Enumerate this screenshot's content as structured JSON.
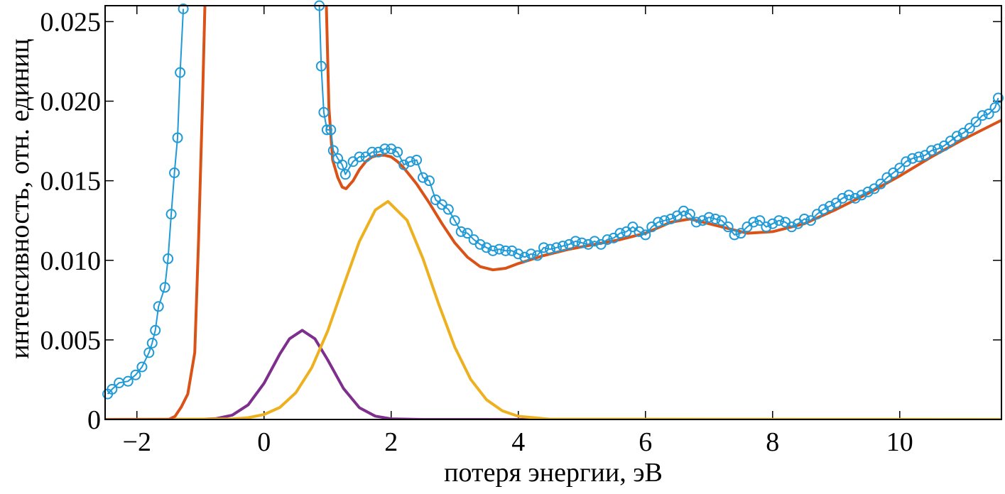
{
  "chart_data": {
    "type": "line",
    "xlabel": "потеря энергии, эВ",
    "ylabel": "интенсивность, отн. единиц",
    "xlim": [
      -2.5,
      11.6
    ],
    "ylim": [
      0,
      0.026
    ],
    "xticks": [
      {
        "value": -2,
        "label": "−2"
      },
      0,
      2,
      4,
      6,
      8,
      10
    ],
    "yticks": [
      0,
      0.005,
      {
        "value": 0.01,
        "label": "0.010"
      },
      0.015,
      {
        "value": 0.02,
        "label": "0.020"
      },
      0.025
    ],
    "series": [
      {
        "color": "#1f9ad6",
        "markers": true,
        "x": [
          -2.46,
          -2.39,
          -2.28,
          -2.14,
          -2.02,
          -1.92,
          -1.81,
          -1.76,
          -1.71,
          -1.66,
          -1.56,
          -1.51,
          -1.46,
          -1.41,
          -1.36,
          -1.32,
          -1.27,
          -0.2,
          0.87,
          0.9,
          0.94,
          0.99,
          1.05,
          1.09,
          1.16,
          1.23,
          1.28,
          1.4,
          1.5,
          1.6,
          1.7,
          1.8,
          1.9,
          2.0,
          2.1,
          2.2,
          2.3,
          2.4,
          2.5,
          2.6,
          2.7,
          2.8,
          2.9,
          3.0,
          3.1,
          3.2,
          3.3,
          3.4,
          3.5,
          3.6,
          3.7,
          3.8,
          3.9,
          4.0,
          4.1,
          4.2,
          4.3,
          4.4,
          4.5,
          4.6,
          4.7,
          4.8,
          4.9,
          5.0,
          5.1,
          5.2,
          5.3,
          5.4,
          5.5,
          5.6,
          5.7,
          5.8,
          5.9,
          6.0,
          6.1,
          6.2,
          6.3,
          6.4,
          6.5,
          6.6,
          6.7,
          6.8,
          6.9,
          7.0,
          7.1,
          7.2,
          7.3,
          7.4,
          7.5,
          7.6,
          7.7,
          7.8,
          7.9,
          8.0,
          8.1,
          8.2,
          8.3,
          8.4,
          8.5,
          8.6,
          8.7,
          8.8,
          8.9,
          9.0,
          9.1,
          9.2,
          9.3,
          9.4,
          9.5,
          9.6,
          9.7,
          9.8,
          9.9,
          10.0,
          10.1,
          10.2,
          10.3,
          10.4,
          10.5,
          10.6,
          10.7,
          10.8,
          10.9,
          11.0,
          11.1,
          11.2,
          11.3,
          11.4,
          11.5,
          11.55
        ],
        "values": [
          0.0016,
          0.0019,
          0.0023,
          0.0024,
          0.0028,
          0.0033,
          0.0042,
          0.0048,
          0.0056,
          0.0071,
          0.0083,
          0.0101,
          0.0129,
          0.0155,
          0.0177,
          0.0218,
          0.0258,
          null,
          0.026,
          0.0222,
          0.0193,
          0.0182,
          0.0182,
          0.0169,
          0.0164,
          0.016,
          0.0154,
          0.0162,
          0.0165,
          0.0165,
          0.0168,
          0.0168,
          0.017,
          0.017,
          0.0168,
          0.016,
          0.0162,
          0.0163,
          0.0152,
          0.015,
          0.0138,
          0.0135,
          0.0132,
          0.0125,
          0.0118,
          0.0117,
          0.0113,
          0.011,
          0.0108,
          0.0106,
          0.0107,
          0.0106,
          0.0106,
          0.0104,
          0.0102,
          0.0104,
          0.0103,
          0.0108,
          0.0107,
          0.0108,
          0.0109,
          0.011,
          0.0112,
          0.0111,
          0.011,
          0.0112,
          0.011,
          0.0113,
          0.0114,
          0.0117,
          0.0118,
          0.0121,
          0.0118,
          0.0116,
          0.0121,
          0.0124,
          0.0125,
          0.0126,
          0.0128,
          0.0131,
          0.0129,
          0.0124,
          0.0125,
          0.0127,
          0.0126,
          0.0125,
          0.0121,
          0.0116,
          0.0117,
          0.0121,
          0.0124,
          0.0125,
          0.0121,
          0.0123,
          0.0125,
          0.0124,
          0.0121,
          0.0123,
          0.0126,
          0.0125,
          0.0129,
          0.0132,
          0.0134,
          0.0136,
          0.0139,
          0.0141,
          0.0139,
          0.0141,
          0.0143,
          0.0145,
          0.0148,
          0.0152,
          0.0155,
          0.0158,
          0.0162,
          0.0164,
          0.0165,
          0.0166,
          0.0169,
          0.017,
          0.0172,
          0.0175,
          0.0178,
          0.018,
          0.0183,
          0.0187,
          0.0191,
          0.0192,
          0.0196,
          0.0202
        ]
      },
      {
        "color": "#d95319",
        "x": [
          -2.5,
          -1.5,
          -1.4,
          -1.3,
          -1.2,
          -1.09,
          -1.03,
          -0.97,
          -0.93,
          0.2,
          0.98,
          1.02,
          1.08,
          1.16,
          1.23,
          1.29,
          1.4,
          1.5,
          1.6,
          1.7,
          1.8,
          1.9,
          2.0,
          2.1,
          2.2,
          2.4,
          2.6,
          2.8,
          3.0,
          3.2,
          3.4,
          3.6,
          3.8,
          4.0,
          4.4,
          4.8,
          5.2,
          5.6,
          6.0,
          6.4,
          6.7,
          7.0,
          7.3,
          7.6,
          8.0,
          8.5,
          9.0,
          9.5,
          10.0,
          10.5,
          11.0,
          11.6
        ],
        "values": [
          0,
          0,
          0.0002,
          0.0008,
          0.0016,
          0.0042,
          0.0113,
          0.0196,
          0.026,
          null,
          0.026,
          0.0196,
          0.0163,
          0.0152,
          0.0146,
          0.0145,
          0.015,
          0.0157,
          0.0162,
          0.0165,
          0.0166,
          0.0166,
          0.0165,
          0.0162,
          0.0158,
          0.0148,
          0.0136,
          0.0123,
          0.0111,
          0.0102,
          0.0096,
          0.0094,
          0.0095,
          0.0098,
          0.0103,
          0.0107,
          0.011,
          0.0113,
          0.0117,
          0.0124,
          0.0126,
          0.0123,
          0.012,
          0.0117,
          0.0118,
          0.0123,
          0.0132,
          0.0142,
          0.0153,
          0.0165,
          0.0176,
          0.0188
        ]
      },
      {
        "color": "#edb120",
        "x": [
          -2.5,
          -0.5,
          -0.25,
          0,
          0.25,
          0.5,
          0.75,
          1.0,
          1.25,
          1.5,
          1.75,
          1.95,
          2.25,
          2.5,
          2.75,
          3.0,
          3.25,
          3.5,
          3.75,
          4.0,
          4.5,
          11.6
        ],
        "values": [
          0,
          3e-05,
          0.00011,
          0.00031,
          0.00076,
          0.00168,
          0.00325,
          0.00555,
          0.00839,
          0.01119,
          0.01316,
          0.0137,
          0.01252,
          0.01011,
          0.00722,
          0.00455,
          0.00253,
          0.00124,
          0.00054,
          0.0002,
          2e-05,
          0
        ]
      },
      {
        "color": "#7e2f8e",
        "x": [
          -2.5,
          -1.0,
          -0.75,
          -0.5,
          -0.25,
          0,
          0.25,
          0.4,
          0.6,
          0.8,
          1.0,
          1.25,
          1.5,
          1.75,
          2.0,
          2.5,
          11.6
        ],
        "values": [
          0,
          1e-05,
          6e-05,
          0.00027,
          0.00092,
          0.00228,
          0.00412,
          0.00507,
          0.0056,
          0.00507,
          0.00375,
          0.00195,
          0.00074,
          0.00021,
          4e-05,
          0,
          0
        ]
      }
    ]
  }
}
